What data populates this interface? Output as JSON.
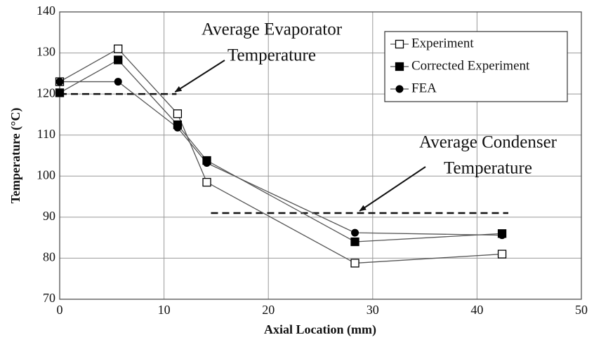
{
  "chart_data": {
    "type": "line",
    "xlabel": "Axial Location (mm)",
    "ylabel": "Temperature (°C)",
    "x": [
      0,
      5.6,
      11.3,
      14.1,
      28.3,
      42.4
    ],
    "series": [
      {
        "name": "Experiment",
        "color": "#000000",
        "marker": "open-square",
        "values": [
          123,
          131,
          115.2,
          98.5,
          78.8,
          81
        ]
      },
      {
        "name": "Corrected Experiment",
        "color": "#000000",
        "marker": "filled-square",
        "values": [
          120.3,
          128.3,
          112.5,
          103.8,
          84,
          86
        ]
      },
      {
        "name": "FEA",
        "color": "#000000",
        "marker": "circle",
        "values": [
          123,
          123,
          111.8,
          103.2,
          86.2,
          85.6
        ]
      }
    ],
    "xlim": [
      0,
      50
    ],
    "ylim": [
      70,
      140
    ],
    "xticks": [
      0,
      10,
      20,
      30,
      40,
      50
    ],
    "yticks": [
      70,
      80,
      90,
      100,
      110,
      120,
      130,
      140
    ],
    "grid": true,
    "legend": "upper right",
    "reference_lines": [
      {
        "y": 120,
        "x": [
          0,
          11.2
        ],
        "label": [
          "Average Evaporator",
          "Temperature"
        ]
      },
      {
        "y": 91,
        "x": [
          14.5,
          43
        ],
        "label": [
          "Average Condenser",
          "Temperature"
        ]
      }
    ]
  }
}
